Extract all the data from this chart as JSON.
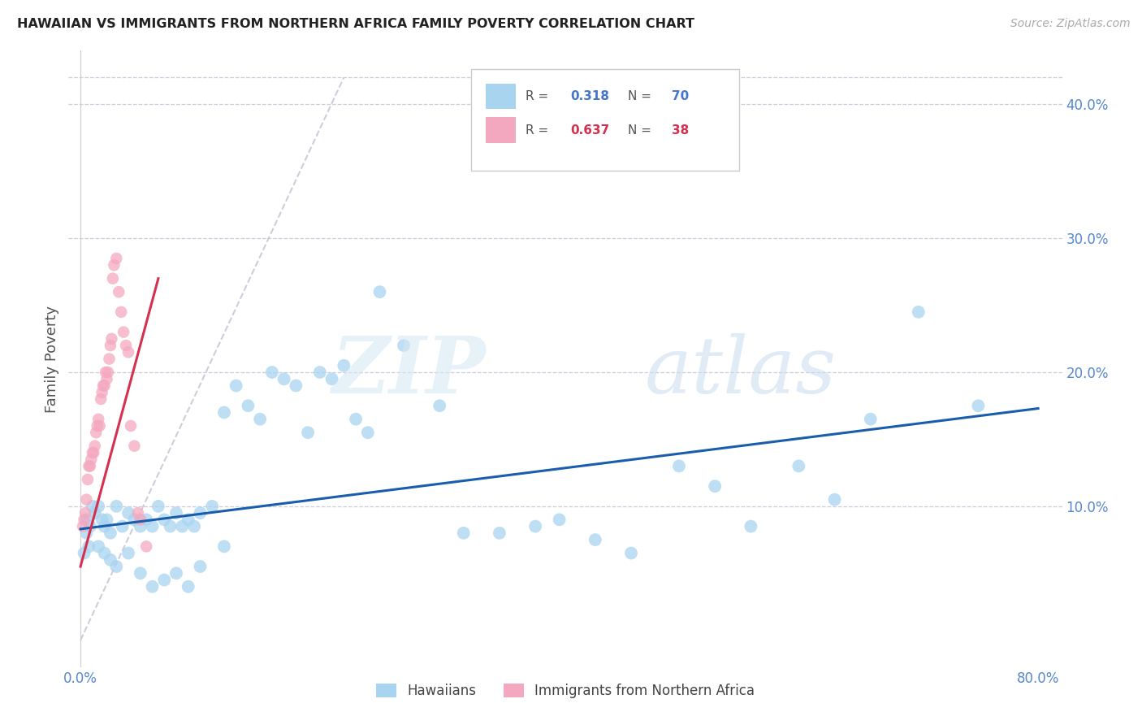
{
  "title": "HAWAIIAN VS IMMIGRANTS FROM NORTHERN AFRICA FAMILY POVERTY CORRELATION CHART",
  "source": "Source: ZipAtlas.com",
  "ylabel": "Family Poverty",
  "legend_label1": "Hawaiians",
  "legend_label2": "Immigrants from Northern Africa",
  "r1": 0.318,
  "n1": 70,
  "r2": 0.637,
  "n2": 38,
  "xlim": [
    -0.01,
    0.82
  ],
  "ylim": [
    -0.02,
    0.44
  ],
  "ytick_positions": [
    0.1,
    0.2,
    0.3,
    0.4
  ],
  "xtick_positions": [
    0.0,
    0.8
  ],
  "color_blue": "#A8D4F0",
  "color_pink": "#F4A8C0",
  "color_blue_line": "#1A5DAB",
  "color_pink_line": "#D63050",
  "color_ref_line": "#C8C8D8",
  "hawaiians_x": [
    0.005,
    0.008,
    0.01,
    0.012,
    0.015,
    0.018,
    0.02,
    0.022,
    0.025,
    0.005,
    0.03,
    0.035,
    0.04,
    0.045,
    0.05,
    0.055,
    0.06,
    0.065,
    0.07,
    0.075,
    0.08,
    0.085,
    0.09,
    0.095,
    0.1,
    0.11,
    0.12,
    0.13,
    0.14,
    0.15,
    0.16,
    0.17,
    0.18,
    0.19,
    0.2,
    0.21,
    0.22,
    0.23,
    0.24,
    0.25,
    0.27,
    0.3,
    0.32,
    0.35,
    0.38,
    0.4,
    0.43,
    0.46,
    0.5,
    0.53,
    0.56,
    0.6,
    0.63,
    0.66,
    0.7,
    0.75,
    0.003,
    0.007,
    0.015,
    0.02,
    0.025,
    0.03,
    0.04,
    0.05,
    0.06,
    0.07,
    0.08,
    0.09,
    0.1,
    0.12
  ],
  "hawaiians_y": [
    0.09,
    0.085,
    0.1,
    0.095,
    0.1,
    0.09,
    0.085,
    0.09,
    0.08,
    0.08,
    0.1,
    0.085,
    0.095,
    0.09,
    0.085,
    0.09,
    0.085,
    0.1,
    0.09,
    0.085,
    0.095,
    0.085,
    0.09,
    0.085,
    0.095,
    0.1,
    0.17,
    0.19,
    0.175,
    0.165,
    0.2,
    0.195,
    0.19,
    0.155,
    0.2,
    0.195,
    0.205,
    0.165,
    0.155,
    0.26,
    0.22,
    0.175,
    0.08,
    0.08,
    0.085,
    0.09,
    0.075,
    0.065,
    0.13,
    0.115,
    0.085,
    0.13,
    0.105,
    0.165,
    0.245,
    0.175,
    0.065,
    0.07,
    0.07,
    0.065,
    0.06,
    0.055,
    0.065,
    0.05,
    0.04,
    0.045,
    0.05,
    0.04,
    0.055,
    0.07
  ],
  "northern_africa_x": [
    0.002,
    0.003,
    0.004,
    0.005,
    0.006,
    0.007,
    0.008,
    0.009,
    0.01,
    0.011,
    0.012,
    0.013,
    0.014,
    0.015,
    0.016,
    0.017,
    0.018,
    0.019,
    0.02,
    0.021,
    0.022,
    0.023,
    0.024,
    0.025,
    0.026,
    0.027,
    0.028,
    0.03,
    0.032,
    0.034,
    0.036,
    0.038,
    0.04,
    0.042,
    0.045,
    0.048,
    0.05,
    0.055
  ],
  "northern_africa_y": [
    0.085,
    0.09,
    0.095,
    0.105,
    0.12,
    0.13,
    0.13,
    0.135,
    0.14,
    0.14,
    0.145,
    0.155,
    0.16,
    0.165,
    0.16,
    0.18,
    0.185,
    0.19,
    0.19,
    0.2,
    0.195,
    0.2,
    0.21,
    0.22,
    0.225,
    0.27,
    0.28,
    0.285,
    0.26,
    0.245,
    0.23,
    0.22,
    0.215,
    0.16,
    0.145,
    0.095,
    0.09,
    0.07
  ],
  "blue_trend_x": [
    0.0,
    0.8
  ],
  "blue_trend_y": [
    0.083,
    0.173
  ],
  "pink_trend_x": [
    0.0,
    0.065
  ],
  "pink_trend_y": [
    0.055,
    0.27
  ],
  "ref_line_x": [
    0.0,
    0.22
  ],
  "ref_line_y": [
    0.0,
    0.42
  ]
}
